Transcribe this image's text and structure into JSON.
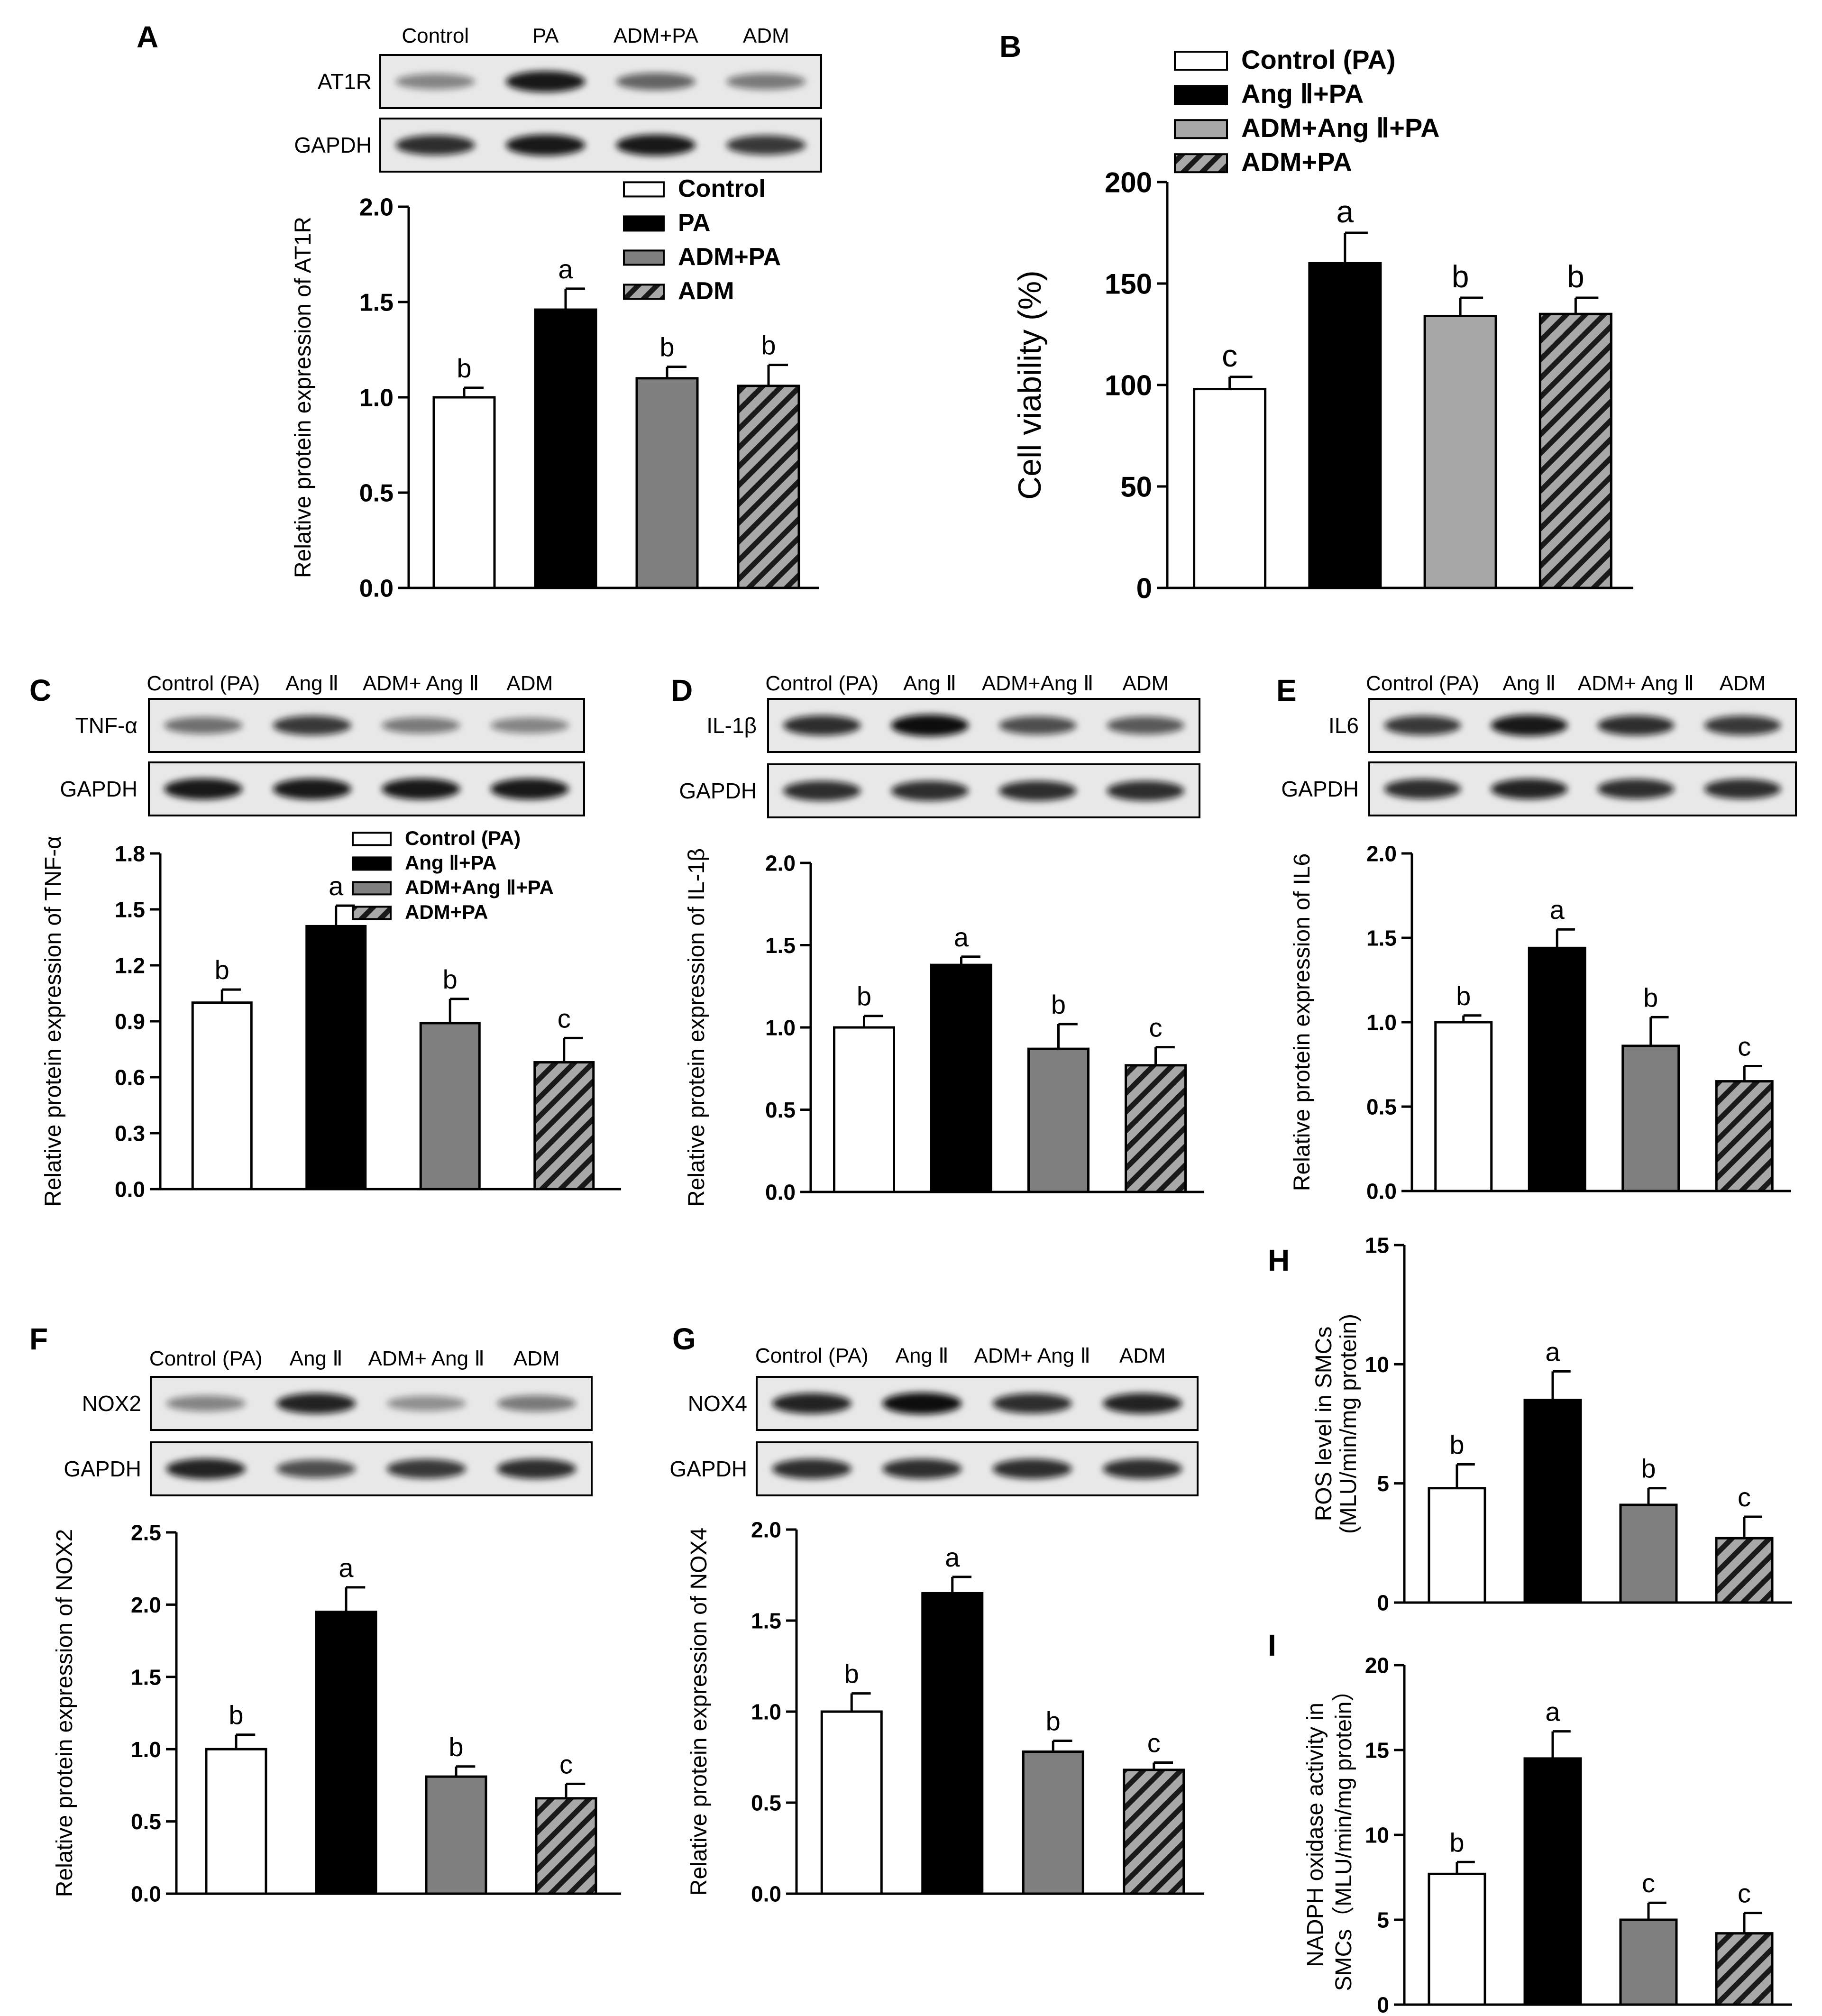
{
  "colors": {
    "control": "#ffffff",
    "treatment": "#000000",
    "adm_combo": "#7f7f7f",
    "adm_combo_b": "#a6a6a6",
    "hatch_bg": "#9c9c9c",
    "hatch_line": "#1a1a1a",
    "axis": "#000000"
  },
  "blot_label_gapdh": "GAPDH",
  "chart_data": [
    {
      "id": "A",
      "type": "bar",
      "panel_label": "A",
      "blot_header": [
        "Control",
        "PA",
        "ADM+PA",
        "ADM"
      ],
      "blot_bands": [
        "AT1R",
        "GAPDH"
      ],
      "categories": [
        "Control",
        "PA",
        "ADM+PA",
        "ADM"
      ],
      "values": [
        1.0,
        1.46,
        1.1,
        1.06
      ],
      "errors": [
        0.05,
        0.11,
        0.06,
        0.11
      ],
      "letters": [
        "b",
        "a",
        "b",
        "b"
      ],
      "ylabel": "Relative protein expression of AT1R",
      "ylim": [
        0,
        2.0
      ],
      "yticks": [
        "0.0",
        "0.5",
        "1.0",
        "1.5",
        "2.0"
      ],
      "legend": [
        "Control",
        "PA",
        "ADM+PA",
        "ADM"
      ],
      "legend_position": "top-right"
    },
    {
      "id": "B",
      "type": "bar",
      "panel_label": "B",
      "categories": [
        "Control (PA)",
        "Ang Ⅱ+PA",
        "ADM+Ang Ⅱ+PA",
        "ADM+PA"
      ],
      "values": [
        98,
        160,
        134,
        135
      ],
      "errors": [
        6,
        15,
        9,
        8
      ],
      "letters": [
        "c",
        "a",
        "b",
        "b"
      ],
      "ylabel": "Cell viability (%)",
      "ylim": [
        0,
        200
      ],
      "yticks": [
        "0",
        "50",
        "100",
        "150",
        "200"
      ],
      "legend": [
        "Control (PA)",
        "Ang Ⅱ+PA",
        "ADM+Ang Ⅱ+PA",
        "ADM+PA"
      ],
      "legend_position": "top"
    },
    {
      "id": "C",
      "type": "bar",
      "panel_label": "C",
      "blot_header": [
        "Control (PA)",
        "Ang Ⅱ",
        "ADM+ Ang Ⅱ",
        "ADM"
      ],
      "blot_bands": [
        "TNF-α",
        "GAPDH"
      ],
      "categories": [
        "Control (PA)",
        "Ang Ⅱ+PA",
        "ADM+Ang Ⅱ+PA",
        "ADM+PA"
      ],
      "values": [
        1.0,
        1.41,
        0.89,
        0.68
      ],
      "errors": [
        0.07,
        0.11,
        0.13,
        0.13
      ],
      "letters": [
        "b",
        "a",
        "b",
        "c"
      ],
      "ylabel": "Relative protein expression of TNF-α",
      "ylim": [
        0,
        1.8
      ],
      "yticks": [
        "0.0",
        "0.3",
        "0.6",
        "0.9",
        "1.2",
        "1.5",
        "1.8"
      ],
      "legend": [
        "Control (PA)",
        "Ang Ⅱ+PA",
        "ADM+Ang Ⅱ+PA",
        "ADM+PA"
      ],
      "legend_position": "top-right"
    },
    {
      "id": "D",
      "type": "bar",
      "panel_label": "D",
      "blot_header": [
        "Control (PA)",
        "Ang Ⅱ",
        "ADM+Ang Ⅱ",
        "ADM"
      ],
      "blot_bands": [
        "IL-1β",
        "GAPDH"
      ],
      "categories": [
        "Control (PA)",
        "Ang Ⅱ+PA",
        "ADM+Ang Ⅱ+PA",
        "ADM+PA"
      ],
      "values": [
        1.0,
        1.38,
        0.87,
        0.77
      ],
      "errors": [
        0.07,
        0.05,
        0.15,
        0.11
      ],
      "letters": [
        "b",
        "a",
        "b",
        "c"
      ],
      "ylabel": "Relative protein expression of IL-1β",
      "ylim": [
        0,
        2.0
      ],
      "yticks": [
        "0.0",
        "0.5",
        "1.0",
        "1.5",
        "2.0"
      ]
    },
    {
      "id": "E",
      "type": "bar",
      "panel_label": "E",
      "blot_header": [
        "Control (PA)",
        "Ang Ⅱ",
        "ADM+ Ang Ⅱ",
        "ADM"
      ],
      "blot_bands": [
        "IL6",
        "GAPDH"
      ],
      "categories": [
        "Control (PA)",
        "Ang Ⅱ+PA",
        "ADM+Ang Ⅱ+PA",
        "ADM+PA"
      ],
      "values": [
        1.0,
        1.44,
        0.86,
        0.65
      ],
      "errors": [
        0.04,
        0.11,
        0.17,
        0.09
      ],
      "letters": [
        "b",
        "a",
        "b",
        "c"
      ],
      "ylabel": "Relative protein expression of IL6",
      "ylim": [
        0,
        2.0
      ],
      "yticks": [
        "0.0",
        "0.5",
        "1.0",
        "1.5",
        "2.0"
      ]
    },
    {
      "id": "F",
      "type": "bar",
      "panel_label": "F",
      "blot_header": [
        "Control (PA)",
        "Ang Ⅱ",
        "ADM+ Ang Ⅱ",
        "ADM"
      ],
      "blot_bands": [
        "NOX2",
        "GAPDH"
      ],
      "categories": [
        "Control (PA)",
        "Ang Ⅱ+PA",
        "ADM+Ang Ⅱ+PA",
        "ADM+PA"
      ],
      "values": [
        1.0,
        1.95,
        0.81,
        0.66
      ],
      "errors": [
        0.1,
        0.17,
        0.07,
        0.1
      ],
      "letters": [
        "b",
        "a",
        "b",
        "c"
      ],
      "ylabel": "Relative protein expression of NOX2",
      "ylim": [
        0,
        2.5
      ],
      "yticks": [
        "0.0",
        "0.5",
        "1.0",
        "1.5",
        "2.0",
        "2.5"
      ]
    },
    {
      "id": "G",
      "type": "bar",
      "panel_label": "G",
      "blot_header": [
        "Control (PA)",
        "Ang Ⅱ",
        "ADM+ Ang Ⅱ",
        "ADM"
      ],
      "blot_bands": [
        "NOX4",
        "GAPDH"
      ],
      "categories": [
        "Control (PA)",
        "Ang Ⅱ+PA",
        "ADM+Ang Ⅱ+PA",
        "ADM+PA"
      ],
      "values": [
        1.0,
        1.65,
        0.78,
        0.68
      ],
      "errors": [
        0.1,
        0.09,
        0.06,
        0.04
      ],
      "letters": [
        "b",
        "a",
        "b",
        "c"
      ],
      "ylabel": "Relative protein expression of NOX4",
      "ylim": [
        0,
        2.0
      ],
      "yticks": [
        "0.0",
        "0.5",
        "1.0",
        "1.5",
        "2.0"
      ]
    },
    {
      "id": "H",
      "type": "bar",
      "panel_label": "H",
      "categories": [
        "Control (PA)",
        "Ang Ⅱ+PA",
        "ADM+Ang Ⅱ+PA",
        "ADM+PA"
      ],
      "values": [
        4.8,
        8.5,
        4.1,
        2.7
      ],
      "errors": [
        1.0,
        1.2,
        0.7,
        0.9
      ],
      "letters": [
        "b",
        "a",
        "b",
        "c"
      ],
      "ylabel": "ROS level in SMCs",
      "ylabel2": "(MLU/min/mg protein)",
      "ylim": [
        0,
        15
      ],
      "yticks": [
        "0",
        "5",
        "10",
        "15"
      ]
    },
    {
      "id": "I",
      "type": "bar",
      "panel_label": "I",
      "categories": [
        "Control (PA)",
        "Ang Ⅱ+PA",
        "ADM+Ang Ⅱ+PA",
        "ADM+PA"
      ],
      "values": [
        7.7,
        14.5,
        5.0,
        4.2
      ],
      "errors": [
        0.7,
        1.6,
        1.0,
        1.2
      ],
      "letters": [
        "b",
        "a",
        "c",
        "c"
      ],
      "ylabel": "NADPH oxidase activity  in",
      "ylabel2": "SMCs（MLU/min/mg protein）",
      "ylim": [
        0,
        20
      ],
      "yticks": [
        "0",
        "5",
        "10",
        "15",
        "20"
      ]
    }
  ]
}
